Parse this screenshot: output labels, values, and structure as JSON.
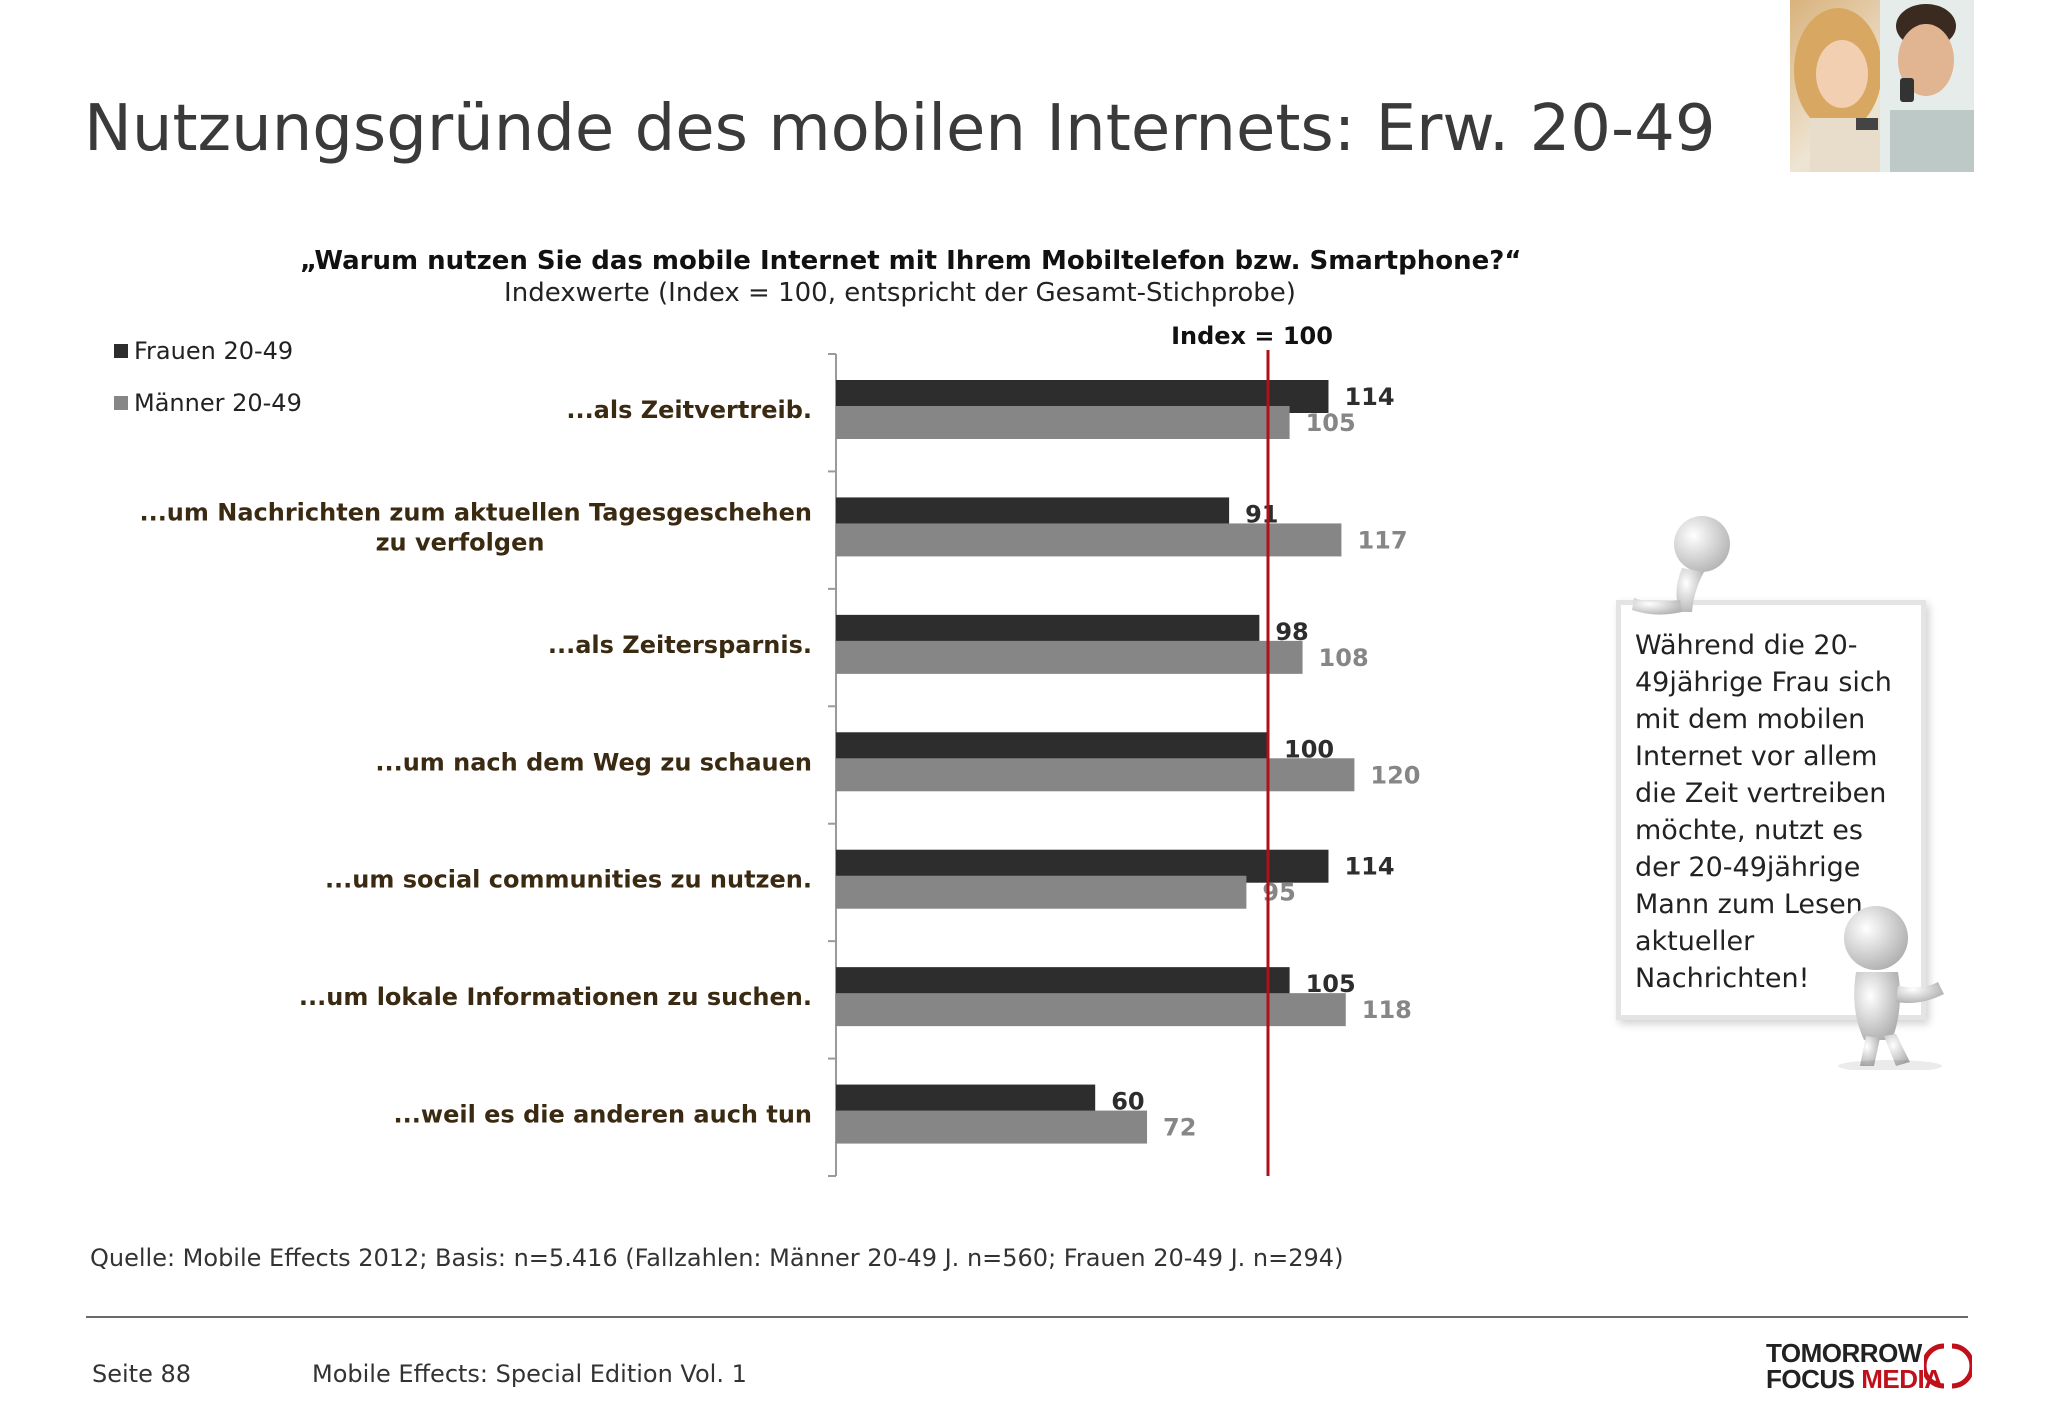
{
  "page": {
    "title": "Nutzungsgründe des mobilen Internets: Erw. 20-49",
    "question": "„Warum nutzen Sie das mobile Internet mit Ihrem Mobiltelefon bzw. Smartphone?“",
    "subquestion": "Indexwerte (Index = 100, entspricht der Gesamt-Stichprobe)",
    "callout": "Während die 20-49jährige Frau sich mit dem mobilen Internet vor allem die Zeit vertreiben möchte, nutzt es der 20-49jährige Mann zum Lesen aktueller Nachrichten!",
    "source": "Quelle: Mobile Effects 2012; Basis: n=5.416 (Fallzahlen: Männer 20-49 J. n=560; Frauen 20-49 J. n=294)",
    "page_number": "Seite 88",
    "publication": "Mobile Effects: Special Edition Vol. 1",
    "logo_line1": "TOMORROW",
    "logo_line2a": "FOCUS ",
    "logo_line2b": "MEDIA"
  },
  "colors": {
    "frauen": "#2e2d2e",
    "maenner": "#878687",
    "reference_line": "#b01018",
    "category_text": "#3b2a12",
    "brand_red": "#c0101a"
  },
  "chart_data": {
    "type": "bar",
    "orientation": "horizontal",
    "categories": [
      "...als Zeitvertreib.",
      "...um Nachrichten zum aktuellen Tagesgeschehen zu verfolgen",
      "...als Zeitersparnis.",
      "...um nach dem Weg zu schauen",
      "...um social communities zu nutzen.",
      "...um lokale Informationen zu suchen.",
      "...weil es die anderen auch tun"
    ],
    "series": [
      {
        "name": "Frauen 20-49",
        "values": [
          114,
          91,
          98,
          100,
          114,
          105,
          60
        ]
      },
      {
        "name": "Männer 20-49",
        "values": [
          105,
          117,
          108,
          120,
          95,
          118,
          72
        ]
      }
    ],
    "reference_line": {
      "value": 100,
      "label": "Index = 100"
    },
    "xlim": [
      0,
      200
    ],
    "grid": false,
    "legend": "top-left",
    "data_labels": true
  }
}
